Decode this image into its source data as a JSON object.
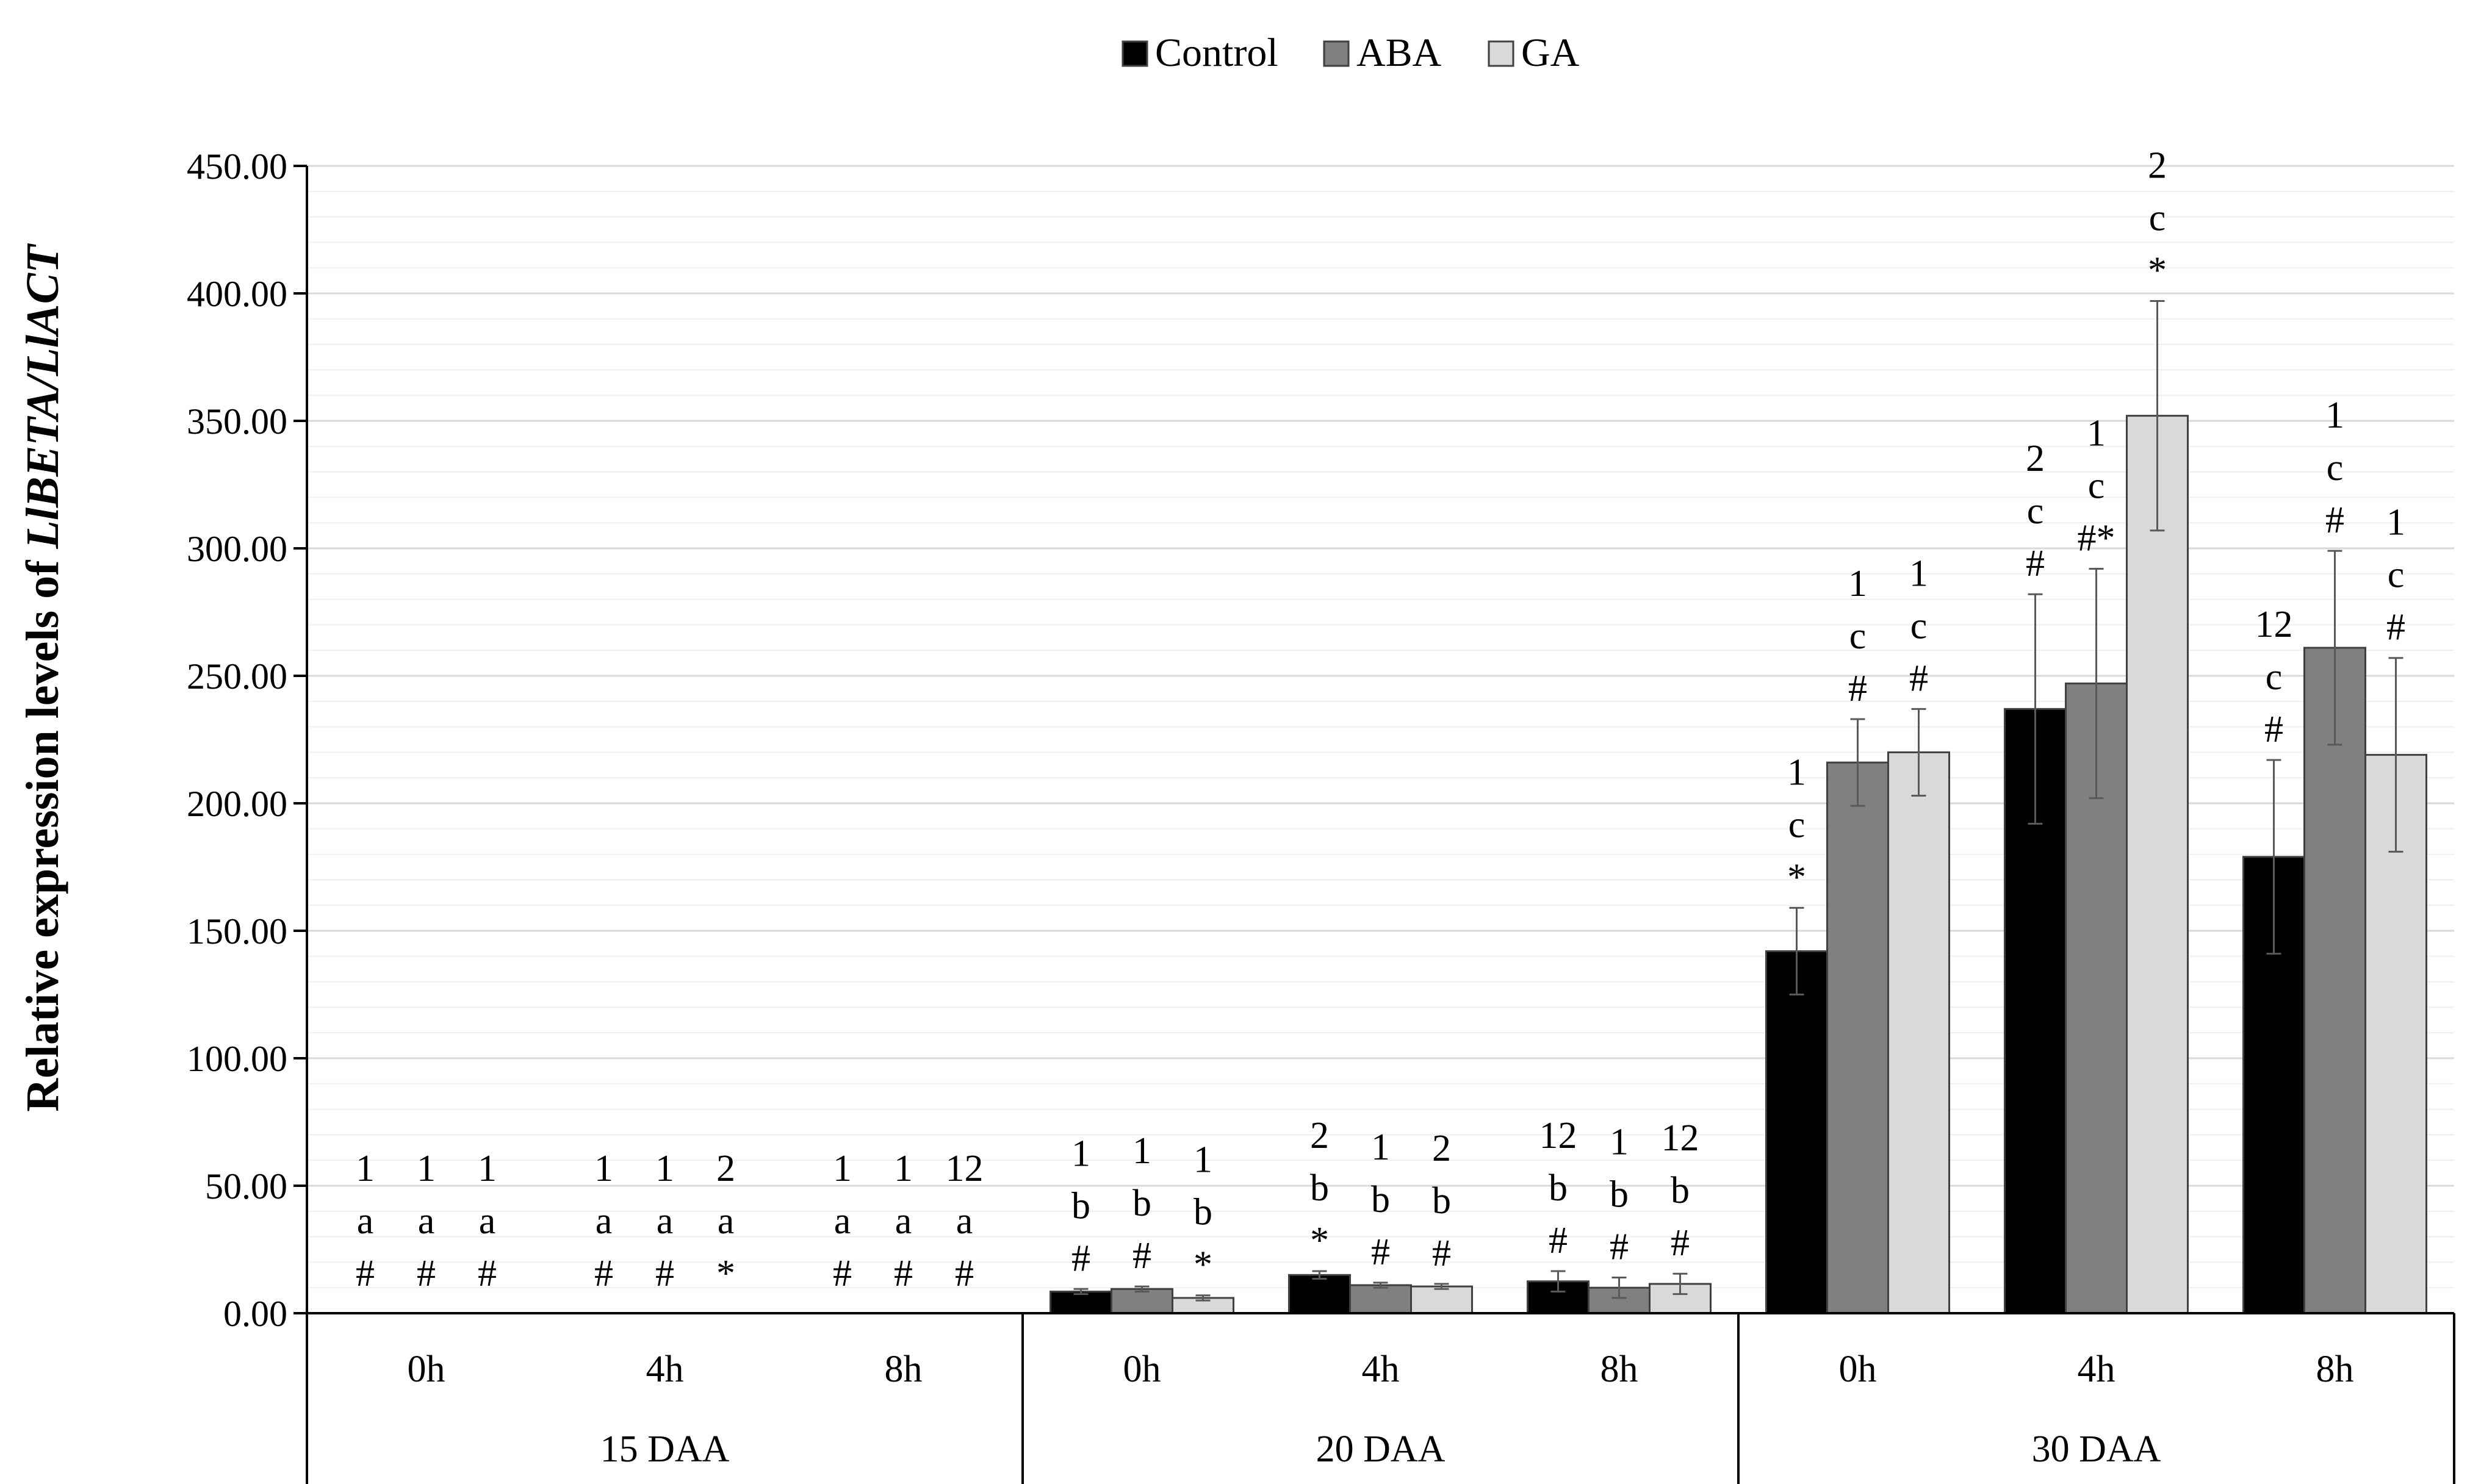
{
  "chart_data": {
    "type": "bar",
    "title": "",
    "ylabel_prefix": "Relative expression levels of ",
    "ylabel_gene": "LlBETA/LlACT",
    "ylim": [
      0,
      450
    ],
    "ytick_step": 50,
    "minor_tick_step": 10,
    "ytick_labels": [
      "0.00",
      "50.00",
      "100.00",
      "150.00",
      "200.00",
      "250.00",
      "300.00",
      "350.00",
      "400.00",
      "450.00"
    ],
    "groups": [
      {
        "label": "15 DAA",
        "times": [
          "0h",
          "4h",
          "8h"
        ]
      },
      {
        "label": "20 DAA",
        "times": [
          "0h",
          "4h",
          "8h"
        ]
      },
      {
        "label": "30 DAA",
        "times": [
          "0h",
          "4h",
          "8h"
        ]
      }
    ],
    "series": [
      {
        "name": "Control",
        "color": "#000000",
        "values": [
          0,
          0,
          0,
          8.5,
          15,
          12.5,
          142,
          237,
          179
        ],
        "errors": [
          0,
          0,
          0,
          1,
          1.5,
          4,
          17,
          45,
          38
        ]
      },
      {
        "name": "ABA",
        "color": "#808080",
        "values": [
          0,
          0,
          0,
          9.5,
          11,
          10,
          216,
          247,
          261
        ],
        "errors": [
          0,
          0,
          0,
          1,
          1,
          4,
          17,
          45,
          38
        ]
      },
      {
        "name": "GA",
        "color": "#d9d9d9",
        "values": [
          0,
          0,
          0,
          6,
          10.5,
          11.5,
          220,
          352,
          219
        ],
        "errors": [
          0,
          0,
          0,
          1,
          1,
          4,
          17,
          45,
          38
        ]
      }
    ],
    "annotations": [
      [
        [
          "1",
          "a",
          "#"
        ],
        [
          "1",
          "a",
          "#"
        ],
        [
          "1",
          "a",
          "#"
        ]
      ],
      [
        [
          "1",
          "a",
          "#"
        ],
        [
          "1",
          "a",
          "#"
        ],
        [
          "2",
          "a",
          "*"
        ]
      ],
      [
        [
          "1",
          "a",
          "#"
        ],
        [
          "1",
          "a",
          "#"
        ],
        [
          "12",
          "a",
          "#"
        ]
      ],
      [
        [
          "1",
          "b",
          "#"
        ],
        [
          "1",
          "b",
          "#"
        ],
        [
          "1",
          "b",
          "*"
        ]
      ],
      [
        [
          "2",
          "b",
          "*"
        ],
        [
          "1",
          "b",
          "#"
        ],
        [
          "2",
          "b",
          "#"
        ]
      ],
      [
        [
          "12",
          "b",
          "#"
        ],
        [
          "1",
          "b",
          "#"
        ],
        [
          "12",
          "b",
          "#"
        ]
      ],
      [
        [
          "1",
          "c",
          "*"
        ],
        [
          "1",
          "c",
          "#"
        ],
        [
          "1",
          "c",
          "#"
        ]
      ],
      [
        [
          "2",
          "c",
          "#"
        ],
        [
          "1",
          "c",
          "#*"
        ],
        [
          "2",
          "c",
          "*"
        ]
      ],
      [
        [
          "12",
          "c",
          "#"
        ],
        [
          "1",
          "c",
          "#"
        ],
        [
          "1",
          "c",
          "#"
        ]
      ]
    ]
  }
}
